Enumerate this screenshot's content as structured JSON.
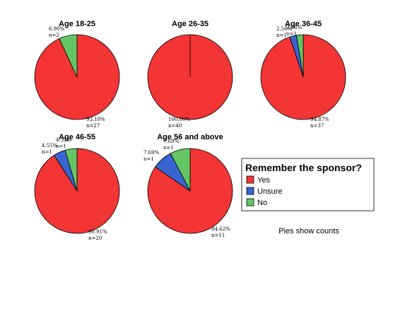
{
  "chart_data": {
    "type": "pie",
    "categories": [
      "Yes",
      "Unsure",
      "No"
    ],
    "colors": [
      "#f33535",
      "#3a64d2",
      "#63c563"
    ],
    "legend": {
      "title": "Remember the sponsor?",
      "items": [
        "Yes",
        "Unsure",
        "No"
      ],
      "placement": "right"
    },
    "note": "Pies show counts",
    "pies": [
      {
        "title": "Age 18-25",
        "values": [
          27,
          0,
          2
        ],
        "labels": [
          {
            "pct": "93.10%",
            "n": "n=27"
          },
          null,
          {
            "pct": "6.90%",
            "n": "n=2"
          }
        ]
      },
      {
        "title": "Age 26-35",
        "values": [
          40,
          0,
          0
        ],
        "labels": [
          {
            "pct": "100.00%",
            "n": "n=40"
          },
          null,
          null
        ]
      },
      {
        "title": "Age 36-45",
        "values": [
          37,
          1,
          1
        ],
        "labels": [
          {
            "pct": "94.87%",
            "n": "n=37"
          },
          {
            "pct": "2.56%",
            "n": "n=1"
          },
          {
            "pct": "2.56%",
            "n": "n=1"
          }
        ]
      },
      {
        "title": "Age 46-55",
        "values": [
          20,
          1,
          1
        ],
        "labels": [
          {
            "pct": "90.91%",
            "n": "n=20"
          },
          {
            "pct": "4.55%",
            "n": "n=1"
          },
          {
            "pct": "4.55%",
            "n": "n=1"
          }
        ]
      },
      {
        "title": "Age 56 and above",
        "values": [
          11,
          1,
          1
        ],
        "labels": [
          {
            "pct": "84.62%",
            "n": "n=11"
          },
          {
            "pct": "7.69%",
            "n": "n=1"
          },
          {
            "pct": "7.69%",
            "n": "n=1"
          }
        ]
      }
    ]
  }
}
